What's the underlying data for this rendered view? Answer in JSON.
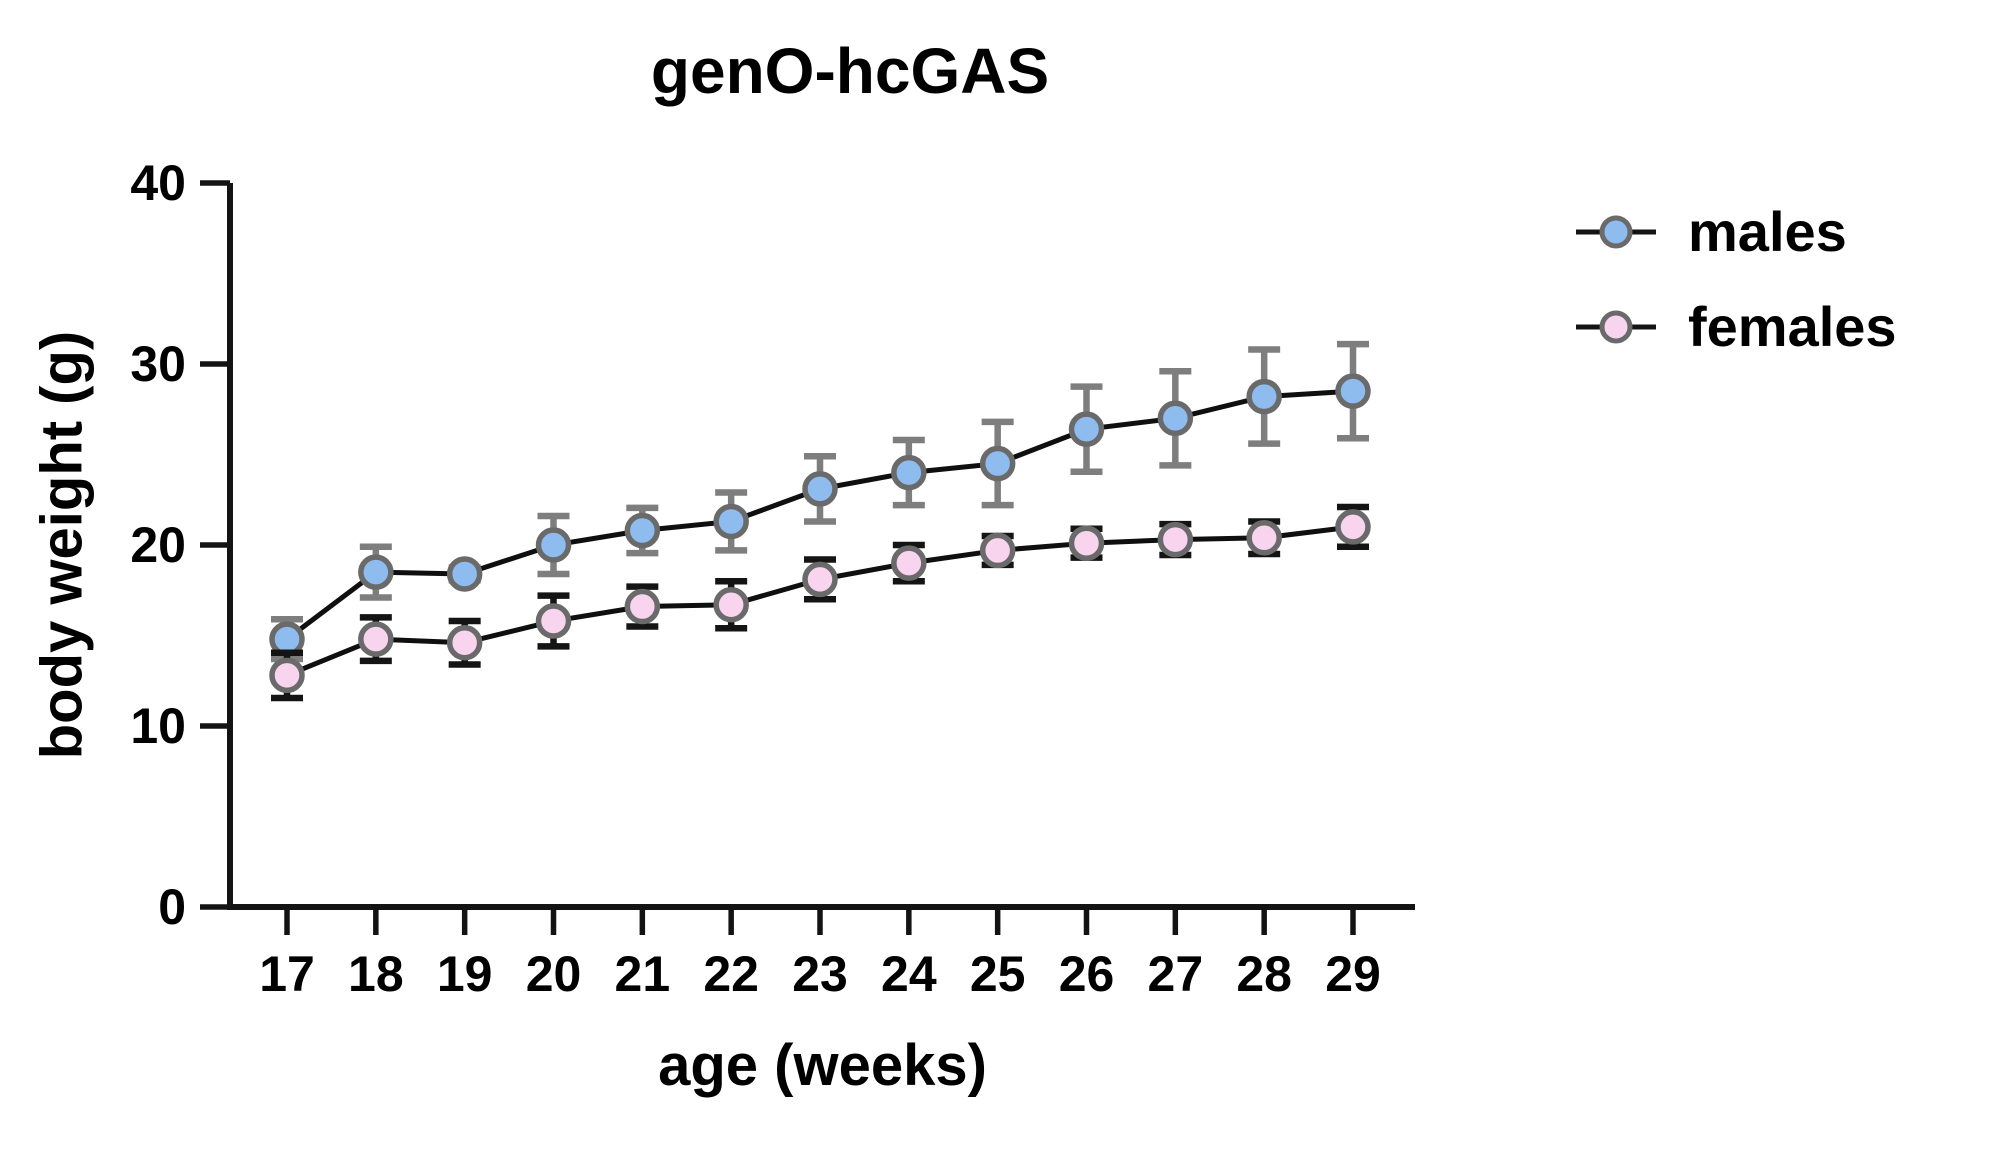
{
  "chart_data": {
    "type": "line",
    "title": "genO-hcGAS",
    "xlabel": "age (weeks)",
    "ylabel": "body weight (g)",
    "x": [
      17,
      18,
      19,
      20,
      21,
      22,
      23,
      24,
      25,
      26,
      27,
      28,
      29
    ],
    "ylim": [
      0,
      40
    ],
    "yticks": [
      0,
      10,
      20,
      30,
      40
    ],
    "grid": false,
    "legend_position": "right",
    "line_color": "#0f0f0f",
    "axis_color": "#131313",
    "series": [
      {
        "name": "males",
        "marker": "circle",
        "color": "#8FBCEF",
        "marker_stroke": "#6A6A6A",
        "error_color": "#7E7E7E",
        "values": [
          14.8,
          18.5,
          18.4,
          20.0,
          20.8,
          21.3,
          23.1,
          24.0,
          24.5,
          26.4,
          27.0,
          28.2,
          28.5
        ],
        "errors": [
          1.1,
          1.4,
          0.35,
          1.6,
          1.25,
          1.6,
          1.8,
          1.8,
          2.3,
          2.35,
          2.6,
          2.6,
          2.6
        ]
      },
      {
        "name": "females",
        "marker": "circle",
        "color": "#F8D4EF",
        "marker_stroke": "#6A6A6A",
        "error_color": "#141414",
        "values": [
          12.8,
          14.8,
          14.6,
          15.8,
          16.6,
          16.7,
          18.1,
          19.0,
          19.7,
          20.1,
          20.3,
          20.4,
          21.0
        ],
        "errors": [
          1.25,
          1.2,
          1.2,
          1.4,
          1.1,
          1.3,
          1.1,
          1.0,
          0.8,
          0.8,
          0.85,
          0.9,
          1.1
        ]
      }
    ]
  }
}
